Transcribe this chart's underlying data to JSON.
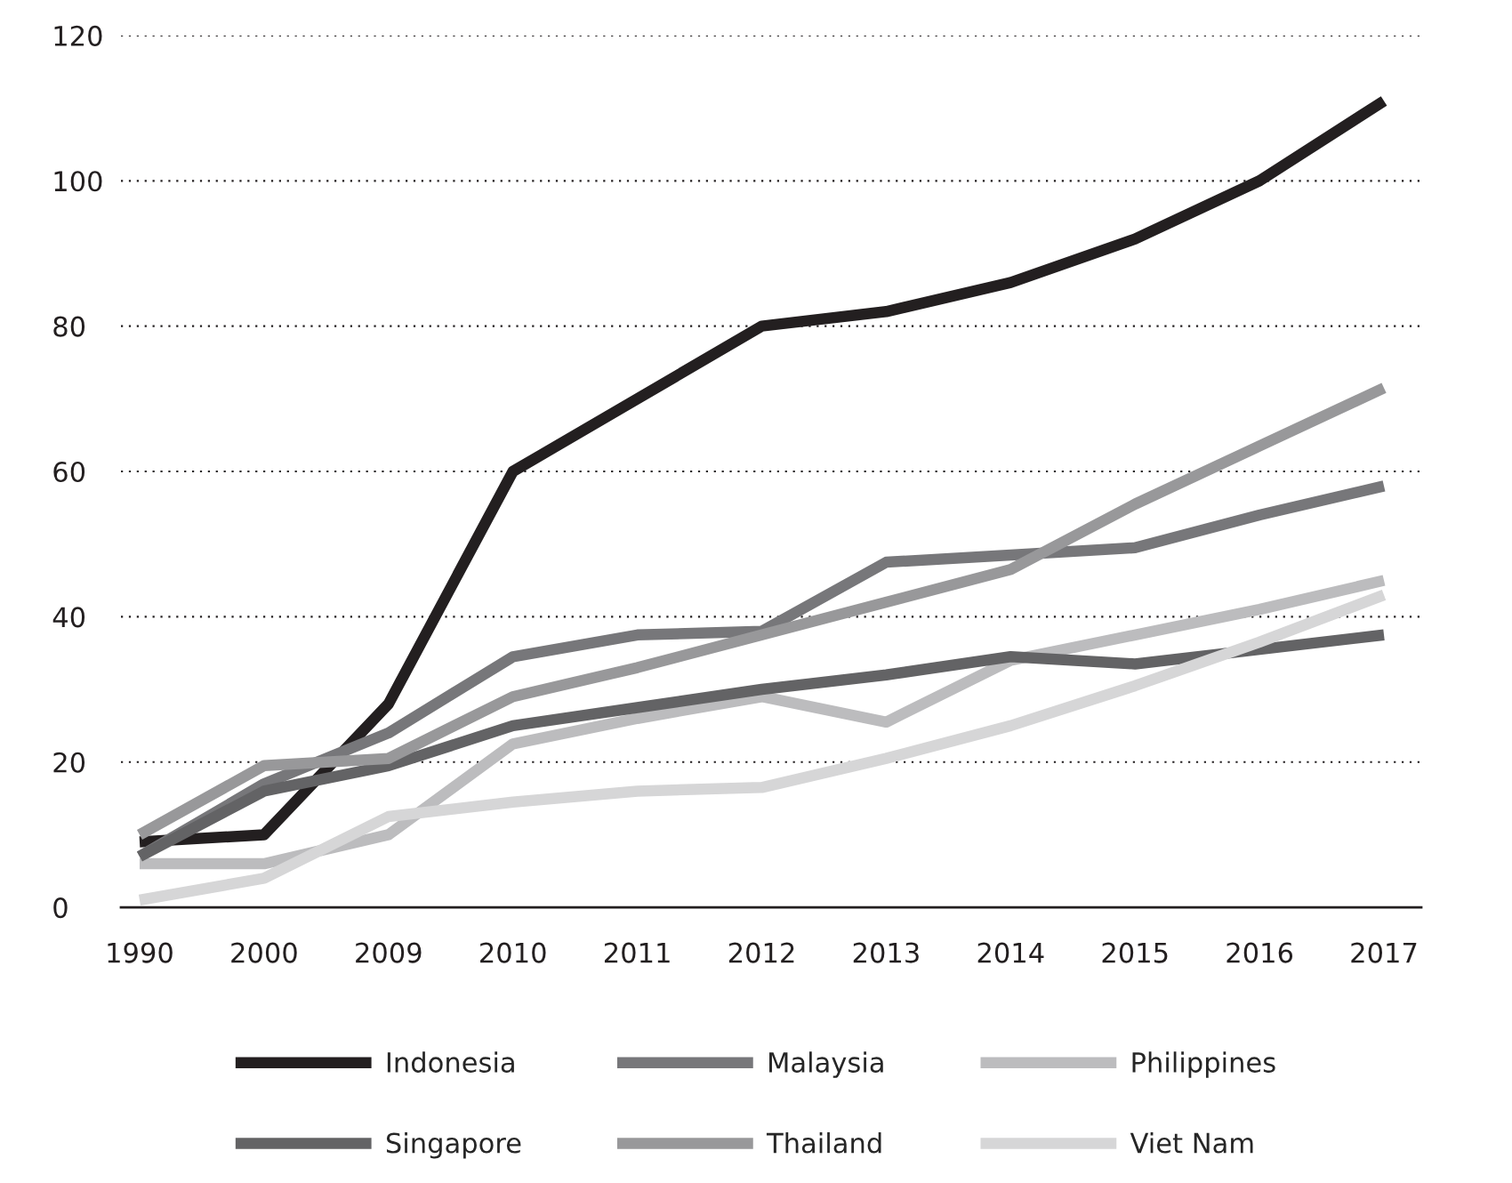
{
  "chart_data": {
    "type": "line",
    "categories": [
      "1990",
      "2000",
      "2009",
      "2010",
      "2011",
      "2012",
      "2013",
      "2014",
      "2015",
      "2016",
      "2017"
    ],
    "series": [
      {
        "name": "Indonesia",
        "color": "#231f20",
        "values": [
          9,
          10,
          28,
          60,
          70,
          80,
          82,
          86,
          92,
          100,
          111
        ]
      },
      {
        "name": "Malaysia",
        "color": "#77777a",
        "values": [
          7,
          17,
          24,
          34.5,
          37.5,
          38,
          47.5,
          48.5,
          49.5,
          54,
          58
        ]
      },
      {
        "name": "Philippines",
        "color": "#bcbcbe",
        "values": [
          6,
          6,
          10,
          22.5,
          26,
          29,
          25.5,
          34,
          37.5,
          41,
          45
        ]
      },
      {
        "name": "Singapore",
        "color": "#636365",
        "values": [
          7,
          16,
          19.5,
          25,
          27.5,
          30,
          32,
          34.5,
          33.5,
          35.5,
          37.5
        ]
      },
      {
        "name": "Thailand",
        "color": "#98989a",
        "values": [
          10,
          19.5,
          20.5,
          29,
          33,
          37.5,
          42,
          46.5,
          55.5,
          63.5,
          71.5
        ]
      },
      {
        "name": "Viet Nam",
        "color": "#d6d6d7",
        "values": [
          1,
          4,
          12.5,
          14.5,
          16,
          16.5,
          20.5,
          25,
          30.5,
          36.5,
          43
        ]
      }
    ],
    "ylim": [
      0,
      120
    ],
    "yticks": [
      0,
      20,
      40,
      60,
      80,
      100,
      120
    ],
    "grid": "y",
    "legend": "bottom",
    "marker": "none",
    "line_style": "solid"
  }
}
